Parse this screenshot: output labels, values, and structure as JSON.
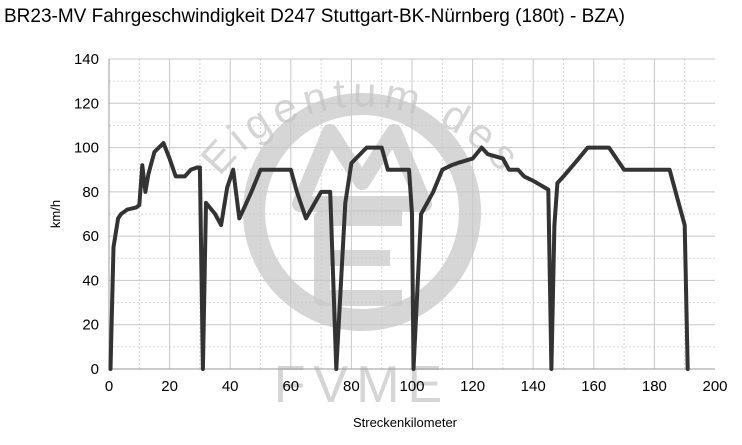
{
  "chart_data": {
    "type": "line",
    "title": "BR23-MV Fahrgeschwindigkeit D247 Stuttgart-BK-Nürnberg (180t) - BZA)",
    "xlabel": "Streckenkilometer",
    "ylabel": "km/h",
    "xlim": [
      0,
      200
    ],
    "ylim": [
      0,
      140
    ],
    "x_ticks": [
      0,
      20,
      40,
      60,
      80,
      100,
      120,
      140,
      160,
      180,
      200
    ],
    "y_ticks": [
      0,
      20,
      40,
      60,
      80,
      100,
      120,
      140
    ],
    "grid": true,
    "legend": "none",
    "series": [
      {
        "color": "#333333",
        "x": [
          0.5,
          1.5,
          3,
          4,
          6,
          9,
          10,
          11,
          12,
          13,
          15,
          18,
          20,
          22,
          25,
          27,
          29,
          30,
          31,
          32,
          35,
          37,
          39,
          41,
          43,
          47,
          50,
          55,
          58,
          60,
          62,
          65,
          70,
          72,
          73,
          75,
          78,
          80,
          85,
          90,
          92,
          97,
          99,
          100,
          100.5,
          103,
          107,
          110,
          113,
          115,
          120,
          123,
          125,
          130,
          132,
          135,
          137,
          140,
          145,
          146,
          147,
          148,
          150,
          155,
          158,
          163,
          165,
          170,
          175,
          180,
          185,
          187,
          190,
          191
        ],
        "y": [
          0,
          55,
          68,
          70,
          72,
          73,
          74,
          92,
          80,
          88,
          98,
          102,
          95,
          87,
          87,
          90,
          91,
          91,
          0,
          75,
          70,
          65,
          82,
          90,
          68,
          80,
          90,
          90,
          90,
          90,
          80,
          68,
          80,
          80,
          80,
          0,
          75,
          93,
          100,
          100,
          90,
          90,
          90,
          70,
          0,
          70,
          80,
          90,
          92,
          93,
          95,
          100,
          97,
          95,
          90,
          90,
          87,
          85,
          81,
          0,
          65,
          84,
          87,
          95,
          100,
          100,
          100,
          90,
          90,
          90,
          90,
          80,
          65,
          0
        ]
      }
    ],
    "watermark": [
      "Eigentum des",
      "FVME"
    ]
  }
}
